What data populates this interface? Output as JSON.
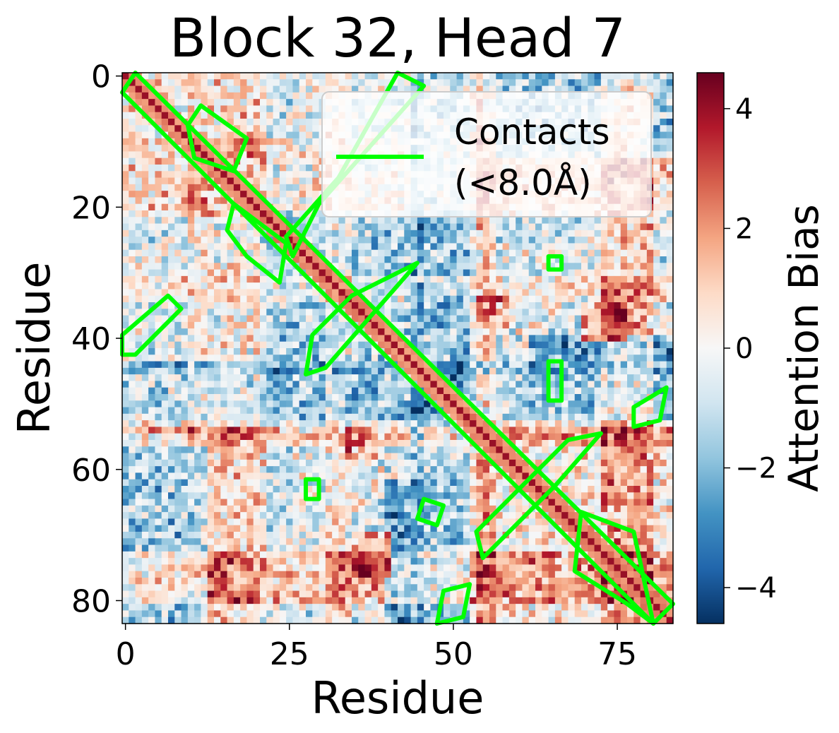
{
  "chart_data": {
    "type": "heatmap",
    "title": "Block 32, Head 7",
    "xlabel": "Residue",
    "ylabel": "Residue",
    "n_residues": 84,
    "x_ticks": [
      0,
      25,
      50,
      75
    ],
    "x_tick_labels": [
      "0",
      "25",
      "50",
      "75"
    ],
    "y_ticks": [
      0,
      20,
      40,
      60,
      80
    ],
    "y_tick_labels": [
      "0",
      "20",
      "40",
      "60",
      "80"
    ],
    "colorbar": {
      "label": "Attention Bias",
      "range": [
        -4.6,
        4.6
      ],
      "ticks": [
        4,
        2,
        0,
        -2,
        -4
      ],
      "tick_labels": [
        "4",
        "2",
        "0",
        "−2",
        "−4"
      ],
      "colormap": "RdBu_r",
      "colors": [
        "#053061",
        "#2166ac",
        "#4393c3",
        "#92c5de",
        "#d1e5f0",
        "#f7f7f7",
        "#fddbc7",
        "#f4a582",
        "#d6604d",
        "#b2182b",
        "#67001f"
      ]
    },
    "legend": {
      "label_line1": "Contacts",
      "label_line2": "(<8.0Å)",
      "color": "#00ff00",
      "placement": "upper right"
    },
    "contact_threshold_angstrom": 8.0,
    "contact_color": "#00ff00",
    "contact_regions": [
      {
        "name": "main-diagonal-band",
        "points": [
          [
            2,
            0
          ],
          [
            84,
            81
          ],
          [
            81,
            84
          ],
          [
            0,
            3
          ]
        ]
      },
      {
        "name": "hairpin-arm-1",
        "points": [
          [
            42,
            0
          ],
          [
            46,
            2
          ],
          [
            30,
            20
          ],
          [
            26,
            28
          ],
          [
            25,
            25
          ],
          [
            33,
            16
          ]
        ]
      },
      {
        "name": "helix-arm-2",
        "points": [
          [
            45,
            29
          ],
          [
            38,
            37
          ],
          [
            31,
            45
          ],
          [
            28,
            46
          ],
          [
            29,
            40
          ],
          [
            35,
            34
          ]
        ]
      },
      {
        "name": "helix-arm-3",
        "points": [
          [
            73,
            55
          ],
          [
            66,
            63
          ],
          [
            55,
            74
          ],
          [
            54,
            70
          ],
          [
            62,
            62
          ],
          [
            68,
            56
          ]
        ]
      },
      {
        "name": "crossing-blob",
        "points": [
          [
            12,
            5
          ],
          [
            19,
            10
          ],
          [
            17,
            15
          ],
          [
            11,
            13
          ],
          [
            10,
            8
          ]
        ]
      },
      {
        "name": "side-blob",
        "points": [
          [
            17,
            20
          ],
          [
            25,
            26
          ],
          [
            24,
            32
          ],
          [
            19,
            28
          ],
          [
            16,
            24
          ]
        ]
      },
      {
        "name": "left-strand",
        "points": [
          [
            0,
            40
          ],
          [
            7,
            34
          ],
          [
            9,
            36
          ],
          [
            2,
            43
          ],
          [
            0,
            43
          ]
        ]
      },
      {
        "name": "lower-right-strand",
        "points": [
          [
            70,
            67
          ],
          [
            78,
            70
          ],
          [
            81,
            84
          ],
          [
            77,
            81
          ],
          [
            69,
            76
          ]
        ]
      },
      {
        "name": "small-contact-1",
        "points": [
          [
            65,
            28
          ],
          [
            67,
            28
          ],
          [
            67,
            30
          ],
          [
            65,
            30
          ]
        ]
      },
      {
        "name": "small-contact-2",
        "points": [
          [
            65,
            44
          ],
          [
            67,
            44
          ],
          [
            67,
            50
          ],
          [
            65,
            50
          ]
        ]
      },
      {
        "name": "small-contact-3",
        "points": [
          [
            46,
            65
          ],
          [
            49,
            66
          ],
          [
            48,
            69
          ],
          [
            45,
            68
          ]
        ]
      },
      {
        "name": "small-contact-4",
        "points": [
          [
            28,
            62
          ],
          [
            30,
            62
          ],
          [
            30,
            65
          ],
          [
            28,
            65
          ]
        ]
      },
      {
        "name": "small-contact-5",
        "points": [
          [
            78,
            51
          ],
          [
            83,
            48
          ],
          [
            82,
            53
          ],
          [
            78,
            54
          ]
        ]
      },
      {
        "name": "small-contact-6",
        "points": [
          [
            49,
            79
          ],
          [
            53,
            78
          ],
          [
            52,
            83
          ],
          [
            48,
            84
          ]
        ]
      }
    ],
    "bias_pattern": {
      "base": 0.3,
      "main_diagonal": 4.0,
      "near_diagonal": 2.2,
      "row_bands": [
        {
          "rows": [
            54,
            56
          ],
          "value": 2.8
        },
        {
          "rows": [
            73,
            80
          ],
          "value": 3.2
        },
        {
          "rows": [
            44,
            52
          ],
          "value": -2.8
        },
        {
          "rows": [
            22,
            30
          ],
          "value": -1.8
        }
      ],
      "column_bands": [
        {
          "cols": [
            10,
            20
          ],
          "value": 1.2
        },
        {
          "cols": [
            35,
            45
          ],
          "value": -1.5
        }
      ],
      "hot_patches": [
        {
          "x": [
            54,
            58
          ],
          "y": [
            34,
            38
          ],
          "value": 4.0
        },
        {
          "x": [
            70,
            76
          ],
          "y": [
            35,
            40
          ],
          "value": 4.2
        },
        {
          "x": [
            2,
            12
          ],
          "y": [
            74,
            80
          ],
          "value": 4.4
        },
        {
          "x": [
            32,
            38
          ],
          "y": [
            74,
            79
          ],
          "value": 4.5
        }
      ],
      "cold_patches": [
        {
          "x": [
            55,
            84
          ],
          "y": [
            0,
            12
          ],
          "value": -3.5
        },
        {
          "x": [
            62,
            84
          ],
          "y": [
            40,
            52
          ],
          "value": -3.6
        }
      ],
      "noise_amplitude": 2.4
    }
  }
}
